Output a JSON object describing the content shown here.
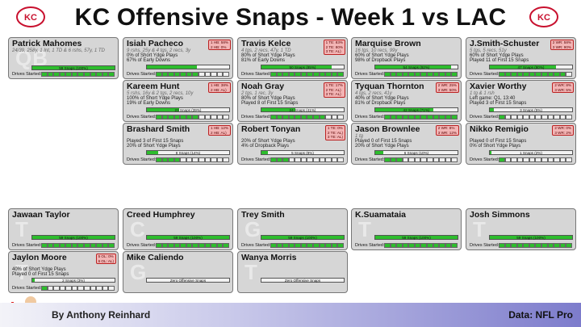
{
  "header": {
    "title": "KC Offensive Snaps - Week 1 vs LAC"
  },
  "footer": {
    "author": "By Anthony Reinhard",
    "source": "Data: NFL Pro"
  },
  "colors": {
    "bar": "#2dbd2d",
    "card": "#d6d6d6",
    "rank_bg": "#f3b5b5"
  },
  "qb": {
    "name": "Patrick Mahomes",
    "pos": "QB",
    "line1": "24/39, 258y, 1 Int, 1 TD & 6 rshs, 57y, 1 TD",
    "snaps": "59 Snaps (100%)",
    "pct": 1.0,
    "drives_on": 12
  },
  "skill": [
    {
      "name": "Isiah Pacheco",
      "line1": "9 rshs, 25y & 4 tgs, 2 recs, 3y",
      "line2": "0% of Short Ydge Plays",
      "line3": "67% of Early Downs",
      "snaps": "",
      "pct": 0.61,
      "ranks": [
        "1 HB: 58%",
        "2 HB: 0%"
      ],
      "drives_on": 7
    },
    {
      "name": "Travis Kelce",
      "line1": "4 tgs, 2 recs, 47y, 1 TD",
      "line2": "80% of Short Ydge Plays",
      "line3": "81% of Early Downs",
      "snaps": "50 Snaps (85%)",
      "pct": 0.85,
      "ranks": [
        "1 TE: 83%",
        "2 TE: 80%",
        "3 TE: AL)"
      ],
      "drives_on": 12
    },
    {
      "name": "Marquise Brown",
      "line1": "16 tgs, 10 recs, 99y",
      "line2": "60% of Short Ydge Plays",
      "line3": "98% of Dropback Plays",
      "snaps": "54 Snaps (92%)",
      "pct": 0.92,
      "ranks": [
        "",
        "",
        ""
      ],
      "drives_on": 12
    },
    {
      "name": "J.Smith-Schuster",
      "line1": "5 tgs, 5 recs, 51y",
      "line2": "60% of Short Ydge Plays",
      "line3": "Played 11 of First 15 Snaps",
      "snaps": "47 Snaps (80%)",
      "pct": 0.8,
      "ranks": [
        "2 WR: 58%",
        "3 WR: 90%"
      ],
      "drives_on": 11
    },
    {
      "name": "Kareem Hunt",
      "line1": "5 rshs, 16y & 2 tgs, 2 recs, 10y",
      "line2": "100% of Short Ydge Plays",
      "line3": "19% of Early Downs",
      "snaps": "23 Snaps (39%)",
      "pct": 0.39,
      "ranks": [
        "1 HB: 38%",
        "2 HB: AL)"
      ],
      "drives_on": 7
    },
    {
      "name": "Noah Gray",
      "line1": "2 tgs, 1 rec, 3y",
      "line2": "80% of Short Ydge Plays",
      "line3": "Played 8 of First 15 Snaps",
      "snaps": "24 Snaps (41%)",
      "pct": 0.41,
      "ranks": [
        "1 TE: 17%",
        "2 TE: AL)",
        "3 TE: AL)"
      ],
      "drives_on": 9
    },
    {
      "name": "Tyquan Thornton",
      "line1": "4 tgs, 2 recs, 41y",
      "line2": "40% of Short Ydge Plays",
      "line3": "81% of Dropback Plays",
      "snaps": "42 Snaps (71%)",
      "pct": 0.71,
      "ranks": [
        "2 WR: 25%",
        "3 WR: 50%"
      ],
      "drives_on": 12
    },
    {
      "name": "Xavier Worthy",
      "line1": "1 tg & 1 rsh",
      "line2": "Left game: Q1, 13:40",
      "line3": "Played 3 of First 15 Snaps",
      "snaps": "3 Snaps (5%)",
      "pct": 0.05,
      "ranks": [
        "2 WR: 8%",
        "3 WR: 5%"
      ],
      "drives_on": 1
    },
    {
      "name": "Brashard Smith",
      "line1": "",
      "line2": "Played 3 of First 15 Snaps",
      "line3": "20% of Short Ydge Plays",
      "snaps": "8 Snaps (14%)",
      "pct": 0.14,
      "ranks": [
        "1 HB: 12%",
        "2 HB: AL)"
      ],
      "drives_on": 4
    },
    {
      "name": "Robert Tonyan",
      "line1": "",
      "line2": "20% of Short Ydge Plays",
      "line3": "4% of Dropback Plays",
      "snaps": "5 Snaps (8%)",
      "pct": 0.08,
      "ranks": [
        "1 TE: 0%",
        "2 TE: AL)",
        "3 TE: AL)"
      ],
      "drives_on": 3
    },
    {
      "name": "Jason Brownlee",
      "line1": "1 tg",
      "line2": "Played 0 of First 15 Snaps",
      "line3": "20% of Short Ydge Plays",
      "snaps": "6 Snaps (10%)",
      "pct": 0.1,
      "ranks": [
        "2 WR: 8%",
        "3 WR: 12%"
      ],
      "drives_on": 3
    },
    {
      "name": "Nikko Remigio",
      "line1": "",
      "line2": "Played 0 of First 15 Snaps",
      "line3": "0% of Short Ydge Plays",
      "snaps": "1 Snaps (2%)",
      "pct": 0.02,
      "ranks": [
        "2 WR: 0%",
        "3 WR: 2%"
      ],
      "drives_on": 1
    }
  ],
  "line": [
    {
      "name": "Jawaan Taylor",
      "pos": "T",
      "snaps": "59 Snaps (100%)",
      "pct": 1.0
    },
    {
      "name": "Creed Humphrey",
      "pos": "C",
      "snaps": "59 Snaps (100%)",
      "pct": 1.0
    },
    {
      "name": "Trey Smith",
      "pos": "G",
      "snaps": "59 Snaps (100%)",
      "pct": 1.0
    },
    {
      "name": "K.Suamataia",
      "pos": "T",
      "snaps": "59 Snaps (100%)",
      "pct": 1.0
    },
    {
      "name": "Josh Simmons",
      "pos": "T",
      "snaps": "59 Snaps (100%)",
      "pct": 1.0
    },
    {
      "name": "Jaylon Moore",
      "pos": "T",
      "snaps": "2 Snaps (3%)",
      "pct": 0.03,
      "line1": "40% of Short Ydge Plays",
      "line2": "Played 0 of First 15 Snaps",
      "ranks": [
        "5 OL: 0%",
        "6 OL: AL)"
      ]
    },
    {
      "name": "Mike Caliendo",
      "pos": "G",
      "snaps": "Zero Offensive Snaps",
      "pct": 0
    },
    {
      "name": "Wanya Morris",
      "pos": "T",
      "snaps": "Zero Offensive Snaps",
      "pct": 0
    }
  ],
  "labels": {
    "drives": "Drives Started:"
  }
}
